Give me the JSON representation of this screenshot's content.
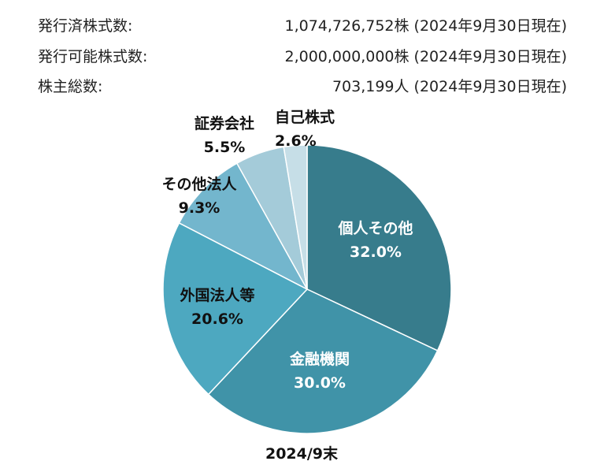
{
  "shares": {
    "issued": {
      "label": "発行済株式数:",
      "value": "1,074,726,752株 (2024年9月30日現在)"
    },
    "authorized": {
      "label": "発行可能株式数:",
      "value": "2,000,000,000株 (2024年9月30日現在)"
    },
    "shareholders": {
      "label": "株主総数:",
      "value": "703,199人 (2024年9月30日現在)"
    }
  },
  "chart_data": {
    "type": "pie",
    "caption": "2024/9末",
    "slices": [
      {
        "name": "個人その他",
        "value": 32.0,
        "label": "32.0%",
        "color": "#377c8c"
      },
      {
        "name": "金融機関",
        "value": 30.0,
        "label": "30.0%",
        "color": "#4093a8"
      },
      {
        "name": "外国法人等",
        "value": 20.6,
        "label": "20.6%",
        "color": "#4da8c0"
      },
      {
        "name": "その他法人",
        "value": 9.3,
        "label": "9.3%",
        "color": "#73b6cd"
      },
      {
        "name": "証券会社",
        "value": 5.5,
        "label": "5.5%",
        "color": "#a4cbd9"
      },
      {
        "name": "自己株式",
        "value": 2.6,
        "label": "2.6%",
        "color": "#c6dee7"
      }
    ]
  }
}
